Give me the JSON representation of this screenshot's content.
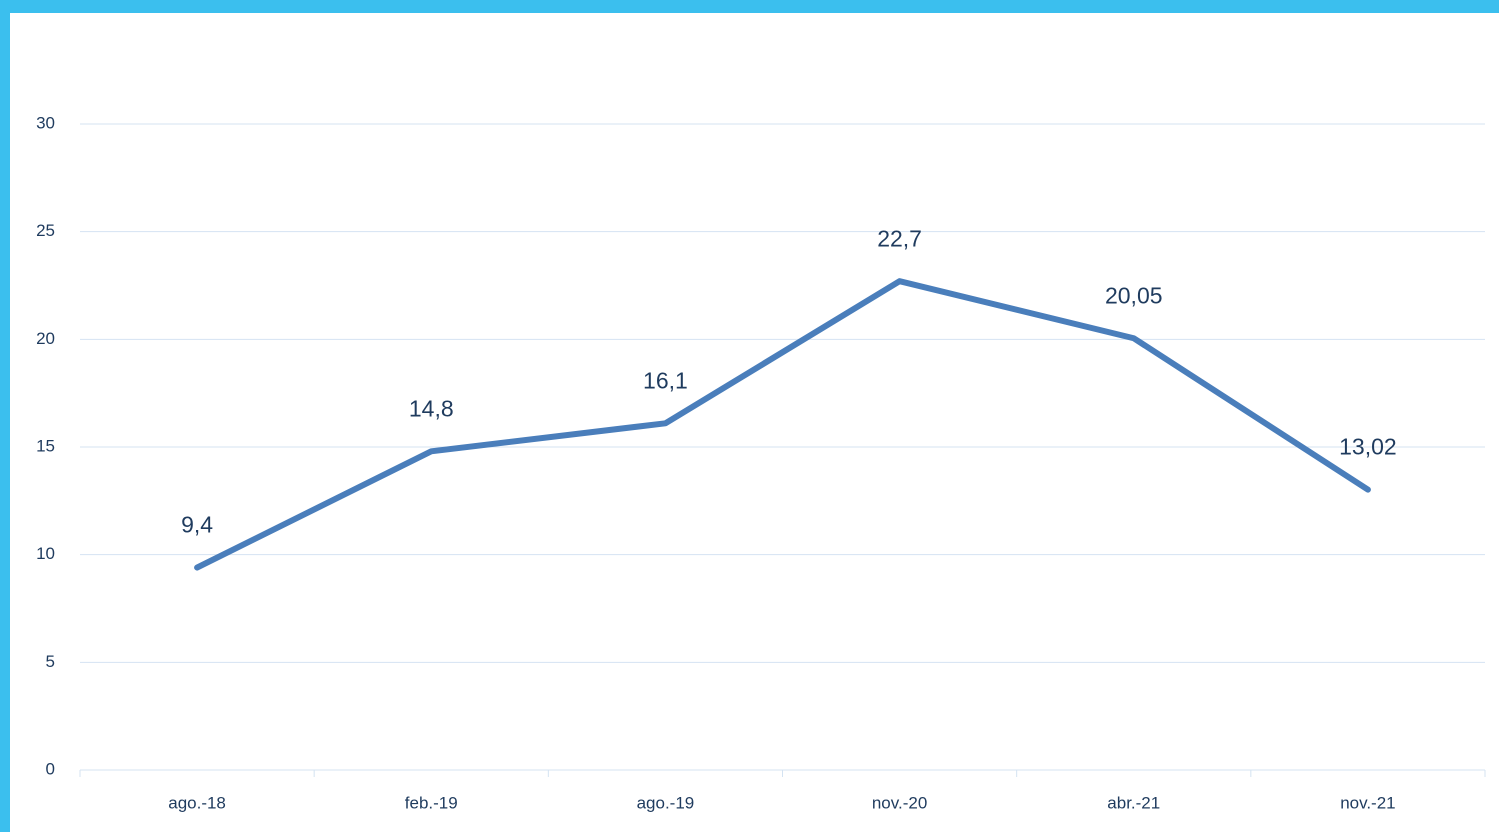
{
  "chart_data": {
    "type": "line",
    "categories": [
      "ago.-18",
      "feb.-19",
      "ago.-19",
      "nov.-20",
      "abr.-21",
      "nov.-21"
    ],
    "values": [
      9.4,
      14.8,
      16.1,
      22.7,
      20.05,
      13.02
    ],
    "value_labels": [
      "9,4",
      "14,8",
      "16,1",
      "22,7",
      "20,05",
      "13,02"
    ],
    "color": "#4a7ebb",
    "ylim": [
      0,
      30
    ],
    "yticks": [
      0,
      5,
      10,
      15,
      20,
      25,
      30
    ],
    "grid": true
  }
}
